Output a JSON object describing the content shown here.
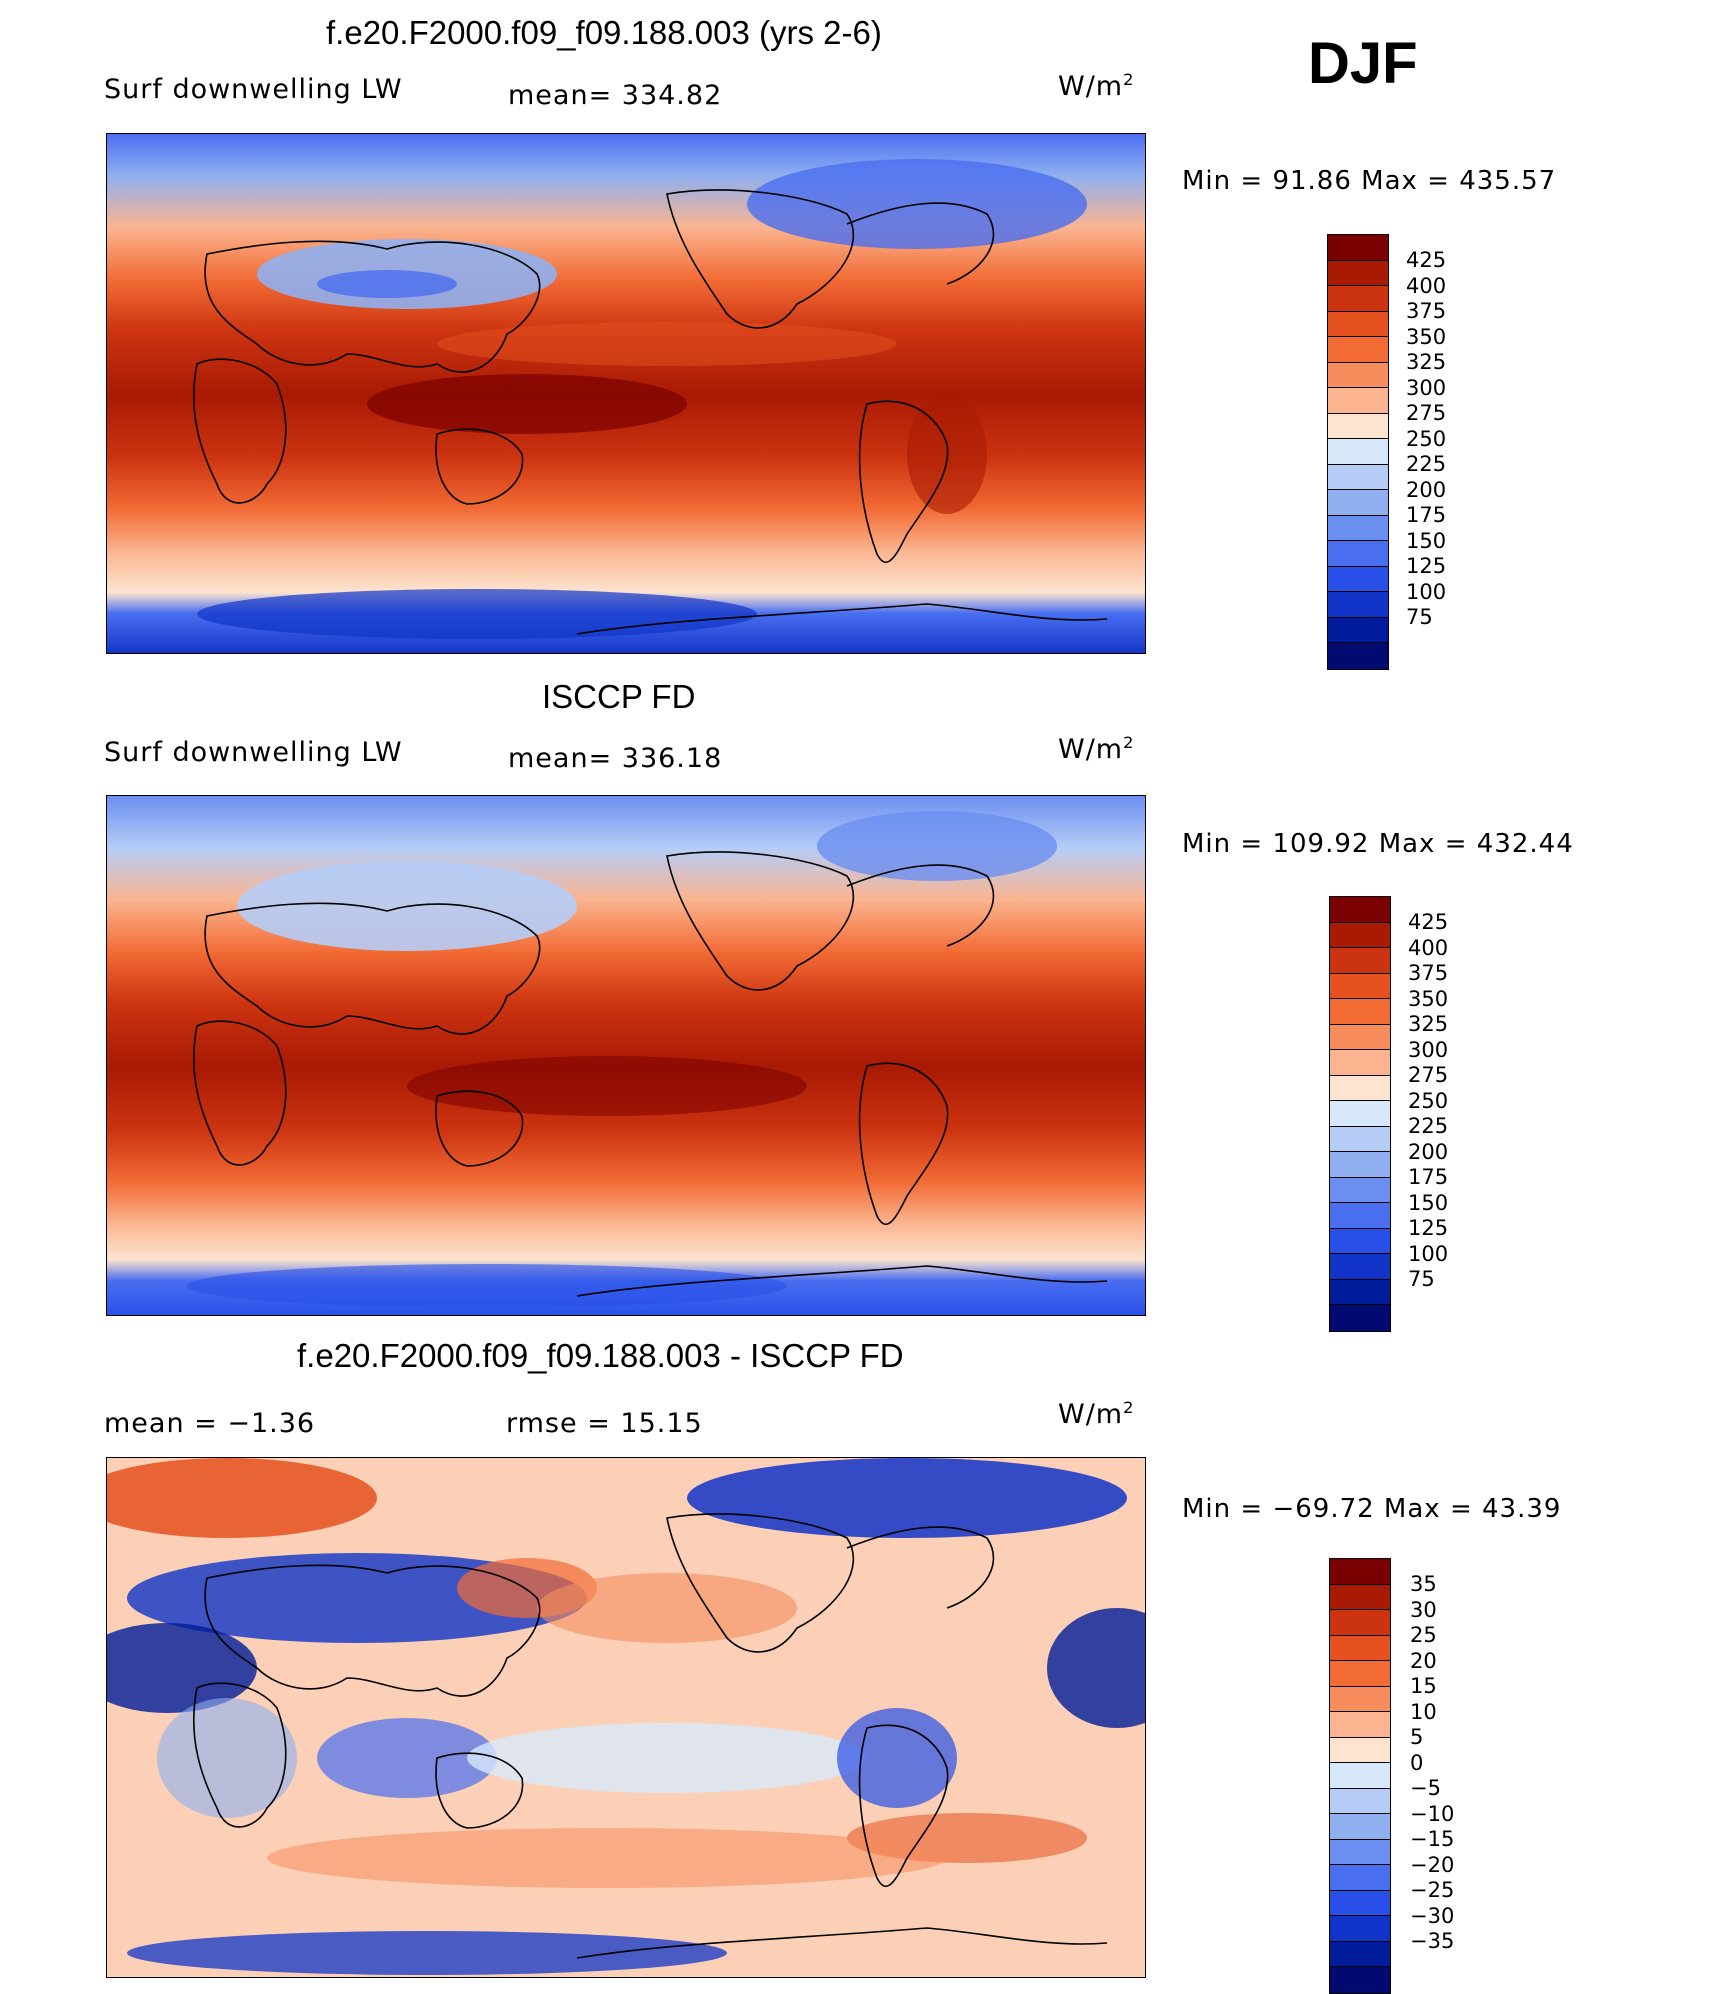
{
  "season": "DJF",
  "panels": [
    {
      "title": "f.e20.F2000.f09_f09.188.003 (yrs 2-6)",
      "left_label": "Surf  downwelling  LW",
      "center_label": "mean=  334.82",
      "units": "W/m",
      "units_exp": "2",
      "minmax": "Min  =    91.86  Max  =  435.57"
    },
    {
      "title": "ISCCP FD",
      "left_label": "Surf  downwelling  LW",
      "center_label": "mean=  336.18",
      "units": "W/m",
      "units_exp": "2",
      "minmax": "Min  =  109.92  Max  =  432.44"
    },
    {
      "title": "f.e20.F2000.f09_f09.188.003 - ISCCP FD",
      "left_label": "mean  =    −1.36",
      "center_label": "rmse  =    15.15",
      "units": "W/m",
      "units_exp": "2",
      "minmax": "Min  =  −69.72  Max  =    43.39"
    }
  ],
  "colorbar_abs": {
    "colors": [
      "#7b0000",
      "#a81a04",
      "#cc3310",
      "#e5511f",
      "#f26b35",
      "#f78d5c",
      "#fbb48f",
      "#fde4d0",
      "#d8e8fb",
      "#b5cdf7",
      "#90b0f0",
      "#6b8ff0",
      "#4a6ef0",
      "#2850e8",
      "#1034c8",
      "#001c9a",
      "#000a70"
    ],
    "ticks": [
      "425",
      "400",
      "375",
      "350",
      "325",
      "300",
      "275",
      "250",
      "225",
      "200",
      "175",
      "150",
      "125",
      "100",
      "75"
    ]
  },
  "colorbar_diff": {
    "colors": [
      "#7b0000",
      "#a81a04",
      "#cc3310",
      "#e5511f",
      "#f26b35",
      "#f78d5c",
      "#fbb48f",
      "#fde4d0",
      "#d8e8fb",
      "#b5cdf7",
      "#90b0f0",
      "#6b8ff0",
      "#4a6ef0",
      "#2850e8",
      "#1034c8",
      "#001c9a",
      "#000a70"
    ],
    "ticks": [
      "35",
      "30",
      "25",
      "20",
      "15",
      "10",
      "5",
      "0",
      "−5",
      "−10",
      "−15",
      "−20",
      "−25",
      "−30",
      "−35"
    ]
  },
  "chart_data": [
    {
      "type": "heatmap",
      "title": "f.e20.F2000.f09_f09.188.003 (yrs 2-6)",
      "variable": "Surf  downwelling  LW",
      "units": "W/m2",
      "mean": 334.82,
      "min": 91.86,
      "max": 435.57,
      "levels": [
        75,
        100,
        125,
        150,
        175,
        200,
        225,
        250,
        275,
        300,
        325,
        350,
        375,
        400,
        425
      ]
    },
    {
      "type": "heatmap",
      "title": "ISCCP FD",
      "variable": "Surf  downwelling  LW",
      "units": "W/m2",
      "mean": 336.18,
      "min": 109.92,
      "max": 432.44,
      "levels": [
        75,
        100,
        125,
        150,
        175,
        200,
        225,
        250,
        275,
        300,
        325,
        350,
        375,
        400,
        425
      ]
    },
    {
      "type": "heatmap",
      "title": "f.e20.F2000.f09_f09.188.003 - ISCCP FD",
      "units": "W/m2",
      "mean": -1.36,
      "rmse": 15.15,
      "min": -69.72,
      "max": 43.39,
      "levels": [
        -35,
        -30,
        -25,
        -20,
        -15,
        -10,
        -5,
        0,
        5,
        10,
        15,
        20,
        25,
        30,
        35
      ]
    }
  ]
}
